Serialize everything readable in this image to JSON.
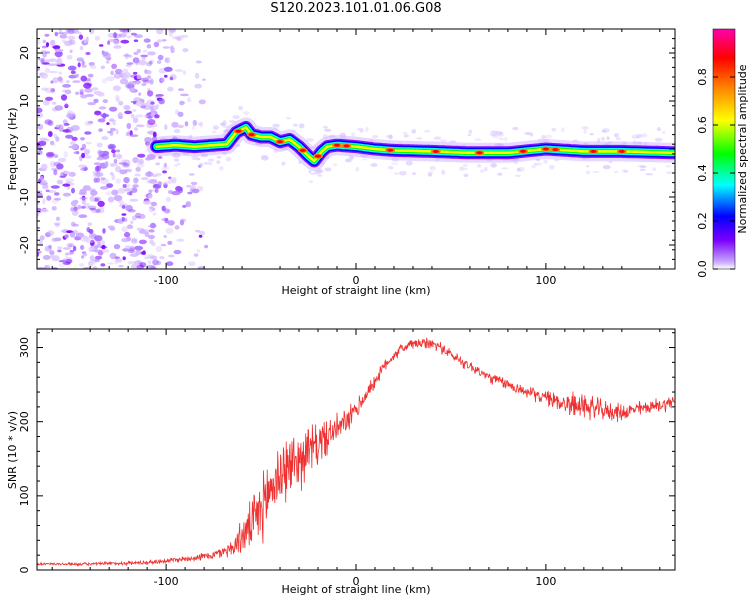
{
  "title": "S120.2023.101.01.06.G08",
  "chart_data": [
    {
      "type": "heatmap",
      "xlabel": "Height of straight line (km)",
      "ylabel": "Frequency (Hz)",
      "xlim": [
        -168,
        168
      ],
      "ylim": [
        -25,
        25
      ],
      "xticks": [
        -100,
        0,
        100
      ],
      "yticks": [
        -20,
        -10,
        0,
        10,
        20
      ],
      "colorbar": {
        "label": "Normalized spectral amplitude",
        "range": [
          0.0,
          1.0
        ],
        "ticks": [
          "0.0",
          "0.2",
          "0.4",
          "0.6",
          "0.8"
        ],
        "colors": [
          "#ffffff",
          "#c8a8ff",
          "#7b00ff",
          "#0000ff",
          "#00ffff",
          "#00ff00",
          "#ffff00",
          "#ff7f00",
          "#ff0000",
          "#ff00aa"
        ]
      },
      "ridge": {
        "x": [
          -105,
          -95,
          -85,
          -75,
          -68,
          -63,
          -58,
          -55,
          -50,
          -45,
          -40,
          -35,
          -30,
          -25,
          -22,
          -18,
          -15,
          -10,
          0,
          10,
          20,
          40,
          60,
          80,
          100,
          120,
          140,
          168
        ],
        "y": [
          0.5,
          0.8,
          0.5,
          0.8,
          1.0,
          3.5,
          4.5,
          3.0,
          2.5,
          2.5,
          1.5,
          2.0,
          0.5,
          -1.5,
          -2.5,
          -0.5,
          0.5,
          0.8,
          0.5,
          0.0,
          -0.3,
          -0.5,
          -0.8,
          -0.8,
          0.0,
          -0.5,
          -0.5,
          -0.8
        ]
      }
    },
    {
      "type": "line",
      "xlabel": "Height of straight line (km)",
      "ylabel": "SNR (10 * v/v)",
      "xlim": [
        -168,
        168
      ],
      "ylim": [
        0,
        325
      ],
      "xticks": [
        -100,
        0,
        100
      ],
      "yticks": [
        0,
        100,
        200,
        300
      ],
      "color": "#ee3030",
      "series": [
        {
          "x": [
            -168,
            -140,
            -110,
            -90,
            -75,
            -65,
            -60,
            -55,
            -50,
            -45,
            -40,
            -35,
            -30,
            -25,
            -20,
            -15,
            -10,
            -5,
            0,
            5,
            10,
            15,
            20,
            25,
            30,
            35,
            40,
            45,
            50,
            60,
            70,
            80,
            90,
            100,
            110,
            115,
            120,
            125,
            130,
            140,
            150,
            160,
            168
          ],
          "y": [
            8,
            8,
            10,
            15,
            20,
            30,
            45,
            60,
            80,
            110,
            130,
            140,
            150,
            160,
            170,
            180,
            190,
            200,
            215,
            235,
            255,
            275,
            290,
            300,
            305,
            305,
            305,
            300,
            290,
            275,
            260,
            250,
            240,
            232,
            225,
            222,
            222,
            218,
            215,
            212,
            218,
            222,
            228
          ],
          "noise": [
            2,
            2,
            3,
            4,
            6,
            12,
            25,
            35,
            45,
            50,
            50,
            45,
            40,
            38,
            30,
            25,
            20,
            18,
            15,
            12,
            10,
            8,
            8,
            8,
            8,
            8,
            8,
            8,
            8,
            8,
            8,
            8,
            8,
            10,
            15,
            18,
            18,
            16,
            14,
            12,
            10,
            10,
            10
          ]
        }
      ]
    }
  ]
}
